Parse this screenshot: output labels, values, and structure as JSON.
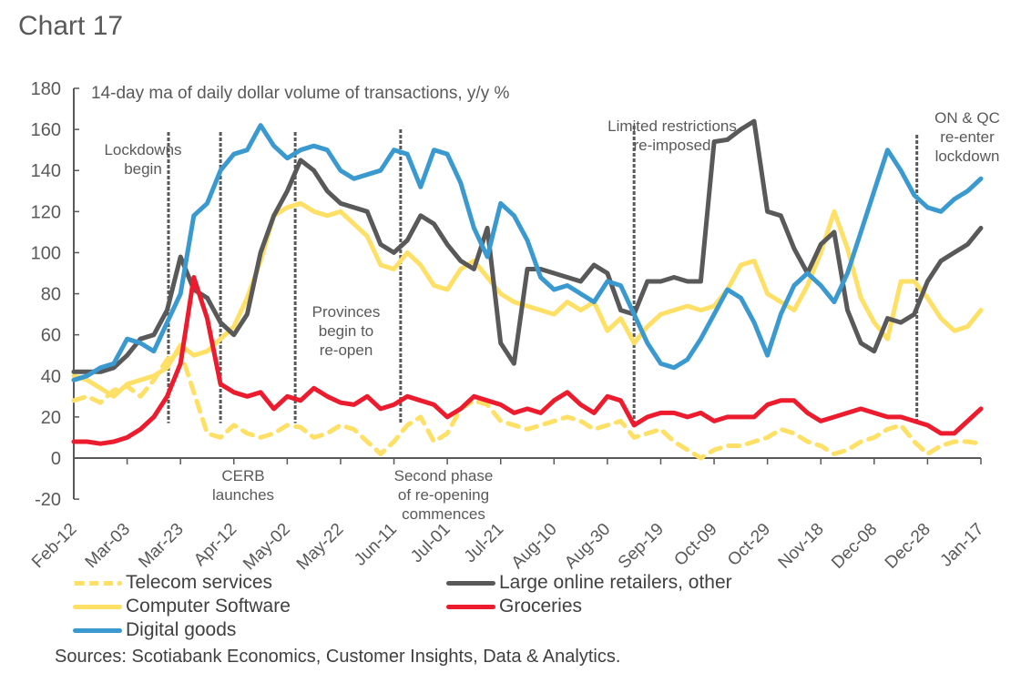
{
  "page": {
    "title": "Chart 17",
    "source": "Sources: Scotiabank Economics, Customer Insights, Data & Analytics."
  },
  "chart_data": {
    "type": "line",
    "title": "Chart 17",
    "subtitle": "14-day ma of daily dollar volume of transactions, y/y %",
    "xlabel": "",
    "ylabel": "",
    "ylim": [
      -20,
      180
    ],
    "yticks": [
      -20,
      0,
      20,
      40,
      60,
      80,
      100,
      120,
      140,
      160,
      180
    ],
    "x_start": "Feb-12",
    "x_step_days": 5,
    "x_span_days": 340,
    "xtick_labels": [
      "Feb-12",
      "Mar-03",
      "Mar-23",
      "Apr-12",
      "May-02",
      "May-22",
      "Jun-11",
      "Jul-01",
      "Jul-21",
      "Aug-10",
      "Aug-30",
      "Sep-19",
      "Oct-09",
      "Oct-29",
      "Nov-18",
      "Dec-08",
      "Dec-28",
      "Jan-17"
    ],
    "xtick_step_days": 20,
    "grid": false,
    "legend_position": "bottom",
    "series": [
      {
        "name": "Telecom services",
        "color": "#FFE066",
        "dash": true,
        "values": [
          28,
          30,
          27,
          33,
          35,
          30,
          38,
          48,
          52,
          32,
          12,
          10,
          16,
          12,
          10,
          12,
          16,
          15,
          10,
          12,
          16,
          14,
          8,
          2,
          8,
          16,
          20,
          8,
          12,
          24,
          28,
          26,
          18,
          16,
          14,
          16,
          18,
          20,
          18,
          14,
          16,
          18,
          10,
          12,
          14,
          8,
          4,
          0,
          4,
          6,
          6,
          8,
          10,
          14,
          12,
          8,
          6,
          2,
          4,
          8,
          10,
          14,
          16,
          8,
          2,
          6,
          8,
          8,
          7
        ]
      },
      {
        "name": "Large online retailers, other",
        "color": "#595959",
        "dash": false,
        "values": [
          42,
          42,
          42,
          44,
          50,
          58,
          60,
          72,
          98,
          82,
          78,
          66,
          60,
          70,
          100,
          118,
          130,
          145,
          140,
          130,
          124,
          122,
          120,
          104,
          100,
          106,
          118,
          114,
          104,
          96,
          92,
          112,
          56,
          46,
          92,
          92,
          90,
          88,
          86,
          94,
          90,
          72,
          70,
          86,
          86,
          88,
          86,
          86,
          154,
          155,
          160,
          164,
          120,
          118,
          102,
          90,
          104,
          110,
          72,
          56,
          52,
          68,
          66,
          70,
          86,
          96,
          100,
          104,
          112
        ]
      },
      {
        "name": "Computer Software",
        "color": "#FFE066",
        "dash": false,
        "values": [
          40,
          38,
          34,
          30,
          36,
          38,
          40,
          44,
          55,
          50,
          52,
          58,
          64,
          78,
          96,
          118,
          122,
          124,
          120,
          118,
          120,
          114,
          108,
          94,
          92,
          100,
          94,
          84,
          82,
          92,
          96,
          88,
          80,
          76,
          74,
          72,
          70,
          76,
          72,
          76,
          62,
          68,
          56,
          64,
          70,
          72,
          74,
          72,
          74,
          82,
          94,
          96,
          80,
          76,
          72,
          84,
          100,
          120,
          102,
          78,
          66,
          58,
          86,
          86,
          78,
          68,
          62,
          64,
          72
        ]
      },
      {
        "name": "Groceries",
        "color": "#EC1C2E",
        "dash": false,
        "values": [
          8,
          8,
          7,
          8,
          10,
          14,
          20,
          30,
          46,
          88,
          68,
          36,
          32,
          30,
          32,
          24,
          30,
          28,
          34,
          30,
          27,
          26,
          30,
          24,
          26,
          30,
          28,
          26,
          20,
          24,
          30,
          28,
          26,
          22,
          24,
          22,
          28,
          32,
          26,
          22,
          30,
          28,
          16,
          20,
          22,
          22,
          20,
          22,
          18,
          20,
          20,
          20,
          26,
          28,
          28,
          22,
          18,
          20,
          22,
          24,
          22,
          20,
          20,
          18,
          16,
          12,
          12,
          18,
          24
        ]
      },
      {
        "name": "Digital goods",
        "color": "#3A9AD0",
        "dash": false,
        "values": [
          38,
          40,
          44,
          46,
          58,
          56,
          52,
          66,
          80,
          118,
          124,
          140,
          148,
          150,
          162,
          152,
          146,
          150,
          152,
          150,
          140,
          136,
          138,
          140,
          150,
          148,
          132,
          150,
          148,
          134,
          112,
          98,
          124,
          118,
          106,
          88,
          82,
          84,
          80,
          76,
          86,
          84,
          70,
          56,
          46,
          44,
          48,
          58,
          70,
          82,
          78,
          66,
          50,
          70,
          84,
          90,
          84,
          76,
          90,
          110,
          130,
          150,
          140,
          128,
          122,
          120,
          126,
          130,
          136
        ]
      }
    ],
    "vlines": [
      {
        "day": 35.5,
        "top": 145,
        "label": "Lockdowns\nbegin",
        "label_pos": "top"
      },
      {
        "day": 55,
        "top": 145,
        "label": "CERB\nlaunches",
        "label_pos": "below-axis"
      },
      {
        "day": 83,
        "top": 145,
        "label": "Provinces\nbegin to\nre-open",
        "label_pos": "between"
      },
      {
        "day": 122.5,
        "top": 142,
        "label": "Second phase\nof re-opening\ncommences",
        "label_pos": "below-axis"
      },
      {
        "day": 210,
        "top": 138,
        "label": "Limited restrictions\nre-imposed",
        "label_pos": "top"
      },
      {
        "day": 316,
        "top": 148,
        "label": "ON & QC\nre-enter\nlockdown",
        "label_pos": "top"
      }
    ]
  }
}
